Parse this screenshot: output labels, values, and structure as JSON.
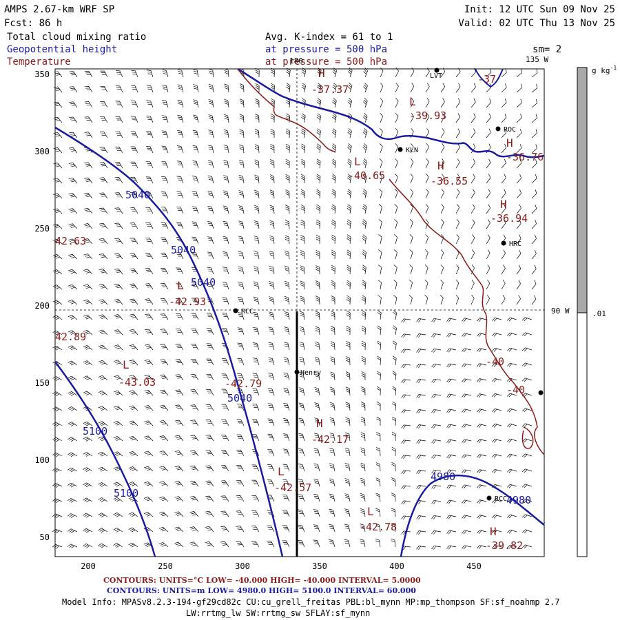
{
  "header": {
    "model": "AMPS 2.67-km WRF SP",
    "forecast": "Fcst:   86 h",
    "init": "Init: 12 UTC Sun 09 Nov 25",
    "valid": "Valid: 02 UTC Thu 13 Nov 25",
    "field_cloud": "Total cloud mixing ratio",
    "field_geo": "Geopotential height",
    "field_temp": "Temperature",
    "avg_kindex": "Avg. K-index =  61 to   1",
    "pressure_geo": "at pressure =  500 hPa",
    "pressure_temp": "at pressure =  500 hPa",
    "smoothing": "sm= 2"
  },
  "map": {
    "x_ticks": [
      "200",
      "250",
      "300",
      "350",
      "400",
      "450"
    ],
    "y_ticks": [
      "350",
      "300",
      "250",
      "200",
      "150",
      "100",
      "50"
    ],
    "lon_top_180": "180",
    "lon_top_135": "135 W",
    "lon_right_90": "90 W",
    "stations": [
      "LVT",
      "ROC",
      "KLN",
      "HRC",
      "RCC",
      "Henry",
      "RCC"
    ],
    "height_labels": [
      "5040",
      "5040",
      "5040",
      "5040",
      "5100",
      "5100",
      "4980",
      "4980"
    ],
    "temp_labels": [
      "-40",
      "-40",
      "-37.37",
      "-39.93",
      "-37",
      "-36.76",
      "-40.65",
      "-36.55",
      "-36.94",
      "42.63",
      "-42.93",
      "42.89",
      "-43.03",
      "-42.79",
      "-42.17",
      "-42.57",
      "-42.78",
      "-39.82"
    ],
    "hl_markers": [
      "H",
      "L",
      "H",
      "L",
      "H",
      "H",
      "L",
      "L",
      "H",
      "L",
      "L",
      "H"
    ]
  },
  "colorbar": {
    "units": "g kg",
    "units_sup": "-1",
    "level": ".01",
    "fill_color": "#a9a9a9"
  },
  "footer": {
    "temp_contours": "CONTOURS:  UNITS=°C  LOW=  -40.000      HIGH=  -40.000      INTERVAL=    5.0000",
    "geo_contours": "CONTOURS:  UNITS=m  LOW=   4980.0      HIGH=   5100.0      INTERVAL=    60.000",
    "model_info": "Model Info: MPASv8.2.3-194-gf29cd82c CU:cu_grell_freitas PBL:bl_mynn MP:mp_thompson SF:sf_noahmp 2.7",
    "model_info2": "LW:rrtmg_lw SW:rrtmg_sw SFLAY:sf_mynn"
  },
  "colors": {
    "temperature": "#8b1a1a",
    "height": "#1a1aa0",
    "barbs": "#000000"
  }
}
